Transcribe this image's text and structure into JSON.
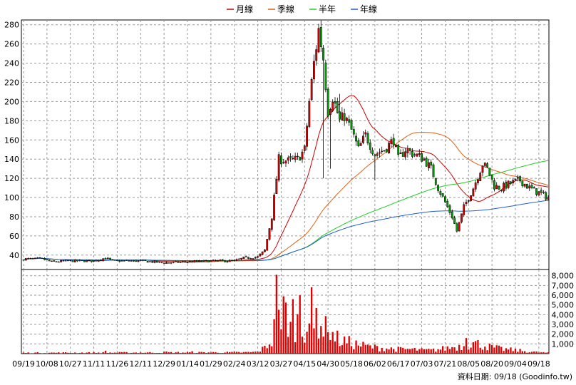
{
  "chart_data": {
    "type": "candlestick",
    "legend": [
      {
        "label": "月線",
        "color": "#cc0000"
      },
      {
        "label": "季線",
        "color": "#e06010"
      },
      {
        "label": "半年",
        "color": "#22cc22"
      },
      {
        "label": "年線",
        "color": "#1f5fcf"
      }
    ],
    "price_axis": {
      "min": 25,
      "max": 285,
      "ticks": [
        40,
        60,
        80,
        100,
        120,
        140,
        160,
        180,
        200,
        220,
        240,
        260,
        280
      ]
    },
    "volume_axis": {
      "min": 0,
      "max": 8200,
      "ticks": [
        "1,000",
        "2,000",
        "3,000",
        "4,000",
        "5,000",
        "6,000",
        "7,000",
        "8,000"
      ],
      "tick_values": [
        1000,
        2000,
        3000,
        4000,
        5000,
        6000,
        7000,
        8000
      ]
    },
    "x_tick_labels": [
      "09/19",
      "10/08",
      "10/27",
      "11/11",
      "11/26",
      "12/11",
      "12/29",
      "01/14",
      "01/29",
      "02/24",
      "03/12",
      "03/27",
      "04/15",
      "04/30",
      "05/18",
      "06/02",
      "06/17",
      "07/03",
      "07/21",
      "08/05",
      "08/20",
      "09/04",
      "09/18"
    ],
    "x_tick_positions": [
      0,
      10,
      20,
      30,
      40,
      50,
      60,
      70,
      80,
      90,
      100,
      110,
      120,
      130,
      140,
      150,
      160,
      170,
      180,
      190,
      200,
      210,
      220
    ],
    "num_days": 225,
    "price_anchors": [
      [
        0,
        36
      ],
      [
        8,
        36
      ],
      [
        12,
        33
      ],
      [
        20,
        34
      ],
      [
        30,
        34
      ],
      [
        35,
        37
      ],
      [
        38,
        34
      ],
      [
        50,
        34
      ],
      [
        60,
        32
      ],
      [
        70,
        33
      ],
      [
        80,
        34
      ],
      [
        90,
        34
      ],
      [
        94,
        37
      ],
      [
        100,
        38
      ],
      [
        103,
        45
      ],
      [
        106,
        80
      ],
      [
        109,
        140
      ],
      [
        113,
        138
      ],
      [
        117,
        140
      ],
      [
        120,
        150
      ],
      [
        122,
        200
      ],
      [
        124,
        240
      ],
      [
        126,
        275
      ],
      [
        128,
        245
      ],
      [
        130,
        190
      ],
      [
        132,
        205
      ],
      [
        135,
        180
      ],
      [
        137,
        185
      ],
      [
        140,
        170
      ],
      [
        143,
        150
      ],
      [
        146,
        165
      ],
      [
        150,
        145
      ],
      [
        154,
        150
      ],
      [
        158,
        160
      ],
      [
        160,
        140
      ],
      [
        163,
        150
      ],
      [
        167,
        145
      ],
      [
        171,
        140
      ],
      [
        174,
        130
      ],
      [
        177,
        110
      ],
      [
        180,
        95
      ],
      [
        183,
        80
      ],
      [
        185,
        65
      ],
      [
        188,
        90
      ],
      [
        192,
        110
      ],
      [
        196,
        135
      ],
      [
        198,
        130
      ],
      [
        201,
        112
      ],
      [
        204,
        110
      ],
      [
        208,
        115
      ],
      [
        212,
        118
      ],
      [
        216,
        110
      ],
      [
        220,
        105
      ],
      [
        224,
        100
      ]
    ],
    "volume_anchors": [
      [
        0,
        100
      ],
      [
        95,
        150
      ],
      [
        100,
        200
      ],
      [
        103,
        700
      ],
      [
        106,
        1500
      ],
      [
        108,
        4000
      ],
      [
        110,
        6000
      ],
      [
        112,
        4500
      ],
      [
        114,
        3000
      ],
      [
        117,
        3500
      ],
      [
        120,
        3000
      ],
      [
        122,
        4500
      ],
      [
        124,
        5000
      ],
      [
        126,
        4000
      ],
      [
        128,
        3000
      ],
      [
        130,
        2500
      ],
      [
        135,
        1500
      ],
      [
        140,
        1200
      ],
      [
        145,
        900
      ],
      [
        150,
        700
      ],
      [
        155,
        600
      ],
      [
        160,
        500
      ],
      [
        165,
        500
      ],
      [
        170,
        400
      ],
      [
        175,
        400
      ],
      [
        180,
        600
      ],
      [
        185,
        800
      ],
      [
        188,
        900
      ],
      [
        192,
        1200
      ],
      [
        196,
        1000
      ],
      [
        200,
        700
      ],
      [
        205,
        500
      ],
      [
        210,
        400
      ],
      [
        215,
        250
      ],
      [
        220,
        150
      ],
      [
        224,
        100
      ]
    ],
    "volume_spikes": [
      [
        35,
        300
      ],
      [
        61,
        220
      ],
      [
        72,
        250
      ],
      [
        108,
        8100
      ],
      [
        109,
        4500
      ],
      [
        110,
        2500
      ],
      [
        115,
        5600
      ],
      [
        118,
        6000
      ],
      [
        122,
        3100
      ],
      [
        124,
        2600
      ],
      [
        130,
        2200
      ],
      [
        189,
        1600
      ]
    ],
    "ma_periods": {
      "month": 20,
      "quarter": 60,
      "half_year": 120,
      "year": 240
    },
    "source_label": "資料日期: 09/18 (Goodinfo.tw)"
  }
}
